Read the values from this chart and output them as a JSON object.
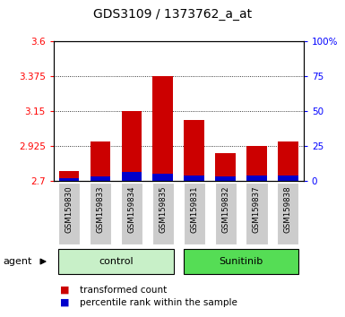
{
  "title": "GDS3109 / 1373762_a_at",
  "samples": [
    "GSM159830",
    "GSM159833",
    "GSM159834",
    "GSM159835",
    "GSM159831",
    "GSM159832",
    "GSM159837",
    "GSM159838"
  ],
  "transformed_count": [
    2.76,
    2.955,
    3.15,
    3.375,
    3.09,
    2.88,
    2.925,
    2.955
  ],
  "percentile_rank_pct": [
    2.0,
    3.0,
    6.0,
    5.0,
    4.0,
    3.0,
    4.0,
    3.5
  ],
  "baseline": 2.7,
  "ylim_left": [
    2.7,
    3.6
  ],
  "ylim_right": [
    0,
    100
  ],
  "yticks_left": [
    2.7,
    2.925,
    3.15,
    3.375,
    3.6
  ],
  "yticks_right": [
    0,
    25,
    50,
    75,
    100
  ],
  "ytick_labels_left": [
    "2.7",
    "2.925",
    "3.15",
    "3.375",
    "3.6"
  ],
  "ytick_labels_right": [
    "0",
    "25",
    "50",
    "75",
    "100%"
  ],
  "groups": [
    {
      "label": "control",
      "indices": [
        0,
        1,
        2,
        3
      ],
      "color": "#c8f0c8"
    },
    {
      "label": "Sunitinib",
      "indices": [
        4,
        5,
        6,
        7
      ],
      "color": "#55dd55"
    }
  ],
  "bar_width": 0.65,
  "bar_color_red": "#cc0000",
  "bar_color_blue": "#0000cc",
  "grid_color": "#000000",
  "bg_color": "#ffffff",
  "xticklabel_bg": "#cccccc",
  "agent_label": "agent",
  "legend_items": [
    "transformed count",
    "percentile rank within the sample"
  ],
  "title_fontsize": 10,
  "tick_fontsize": 7.5,
  "legend_fontsize": 7.5
}
